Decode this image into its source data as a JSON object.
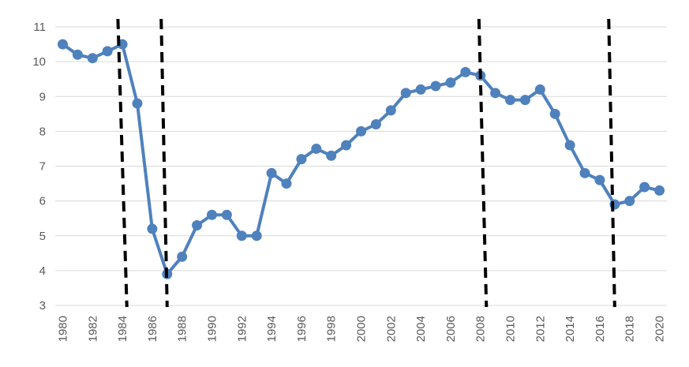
{
  "chart_data": {
    "type": "line",
    "title": "",
    "xlabel": "",
    "ylabel": "",
    "ylim": [
      3,
      11
    ],
    "yticks": [
      3,
      4,
      5,
      6,
      7,
      8,
      9,
      10,
      11
    ],
    "xticks": [
      "1980",
      "1982",
      "1984",
      "1986",
      "1988",
      "1990",
      "1992",
      "1994",
      "1996",
      "1998",
      "2000",
      "2002",
      "2004",
      "2006",
      "2008",
      "2010",
      "2012",
      "2014",
      "2016",
      "2018",
      "2020"
    ],
    "grid": "horizontal",
    "series_color": "#4f81bd",
    "series": [
      {
        "x": [
          1980,
          1981,
          1982,
          1983,
          1984,
          1985,
          1986,
          1987,
          1988,
          1989,
          1990,
          1991,
          1992,
          1993,
          1994,
          1995,
          1996,
          1997,
          1998,
          1999,
          2000,
          2001,
          2002,
          2003,
          2004,
          2005,
          2006,
          2007,
          2008,
          2009,
          2010,
          2011,
          2012,
          2013,
          2014,
          2015,
          2016,
          2017,
          2018,
          2019,
          2020
        ],
        "values": [
          10.5,
          10.2,
          10.1,
          10.3,
          10.5,
          8.8,
          5.2,
          3.9,
          4.4,
          5.3,
          5.6,
          5.6,
          5.0,
          5.0,
          6.8,
          6.5,
          7.2,
          7.5,
          7.3,
          7.6,
          8.0,
          8.2,
          8.6,
          9.1,
          9.2,
          9.3,
          9.4,
          9.7,
          9.6,
          9.1,
          8.9,
          8.9,
          9.2,
          8.5,
          7.6,
          6.8,
          6.6,
          5.9,
          6.0,
          6.4,
          6.3
        ]
      }
    ],
    "annotations": {
      "dashed_break_lines": [
        {
          "x_top": 1983.7,
          "x_bottom": 1984.3
        },
        {
          "x_top": 1986.6,
          "x_bottom": 1987.0
        },
        {
          "x_top": 2007.9,
          "x_bottom": 2008.4
        },
        {
          "x_top": 2016.6,
          "x_bottom": 2017.0
        }
      ],
      "line_color": "#000000"
    }
  }
}
